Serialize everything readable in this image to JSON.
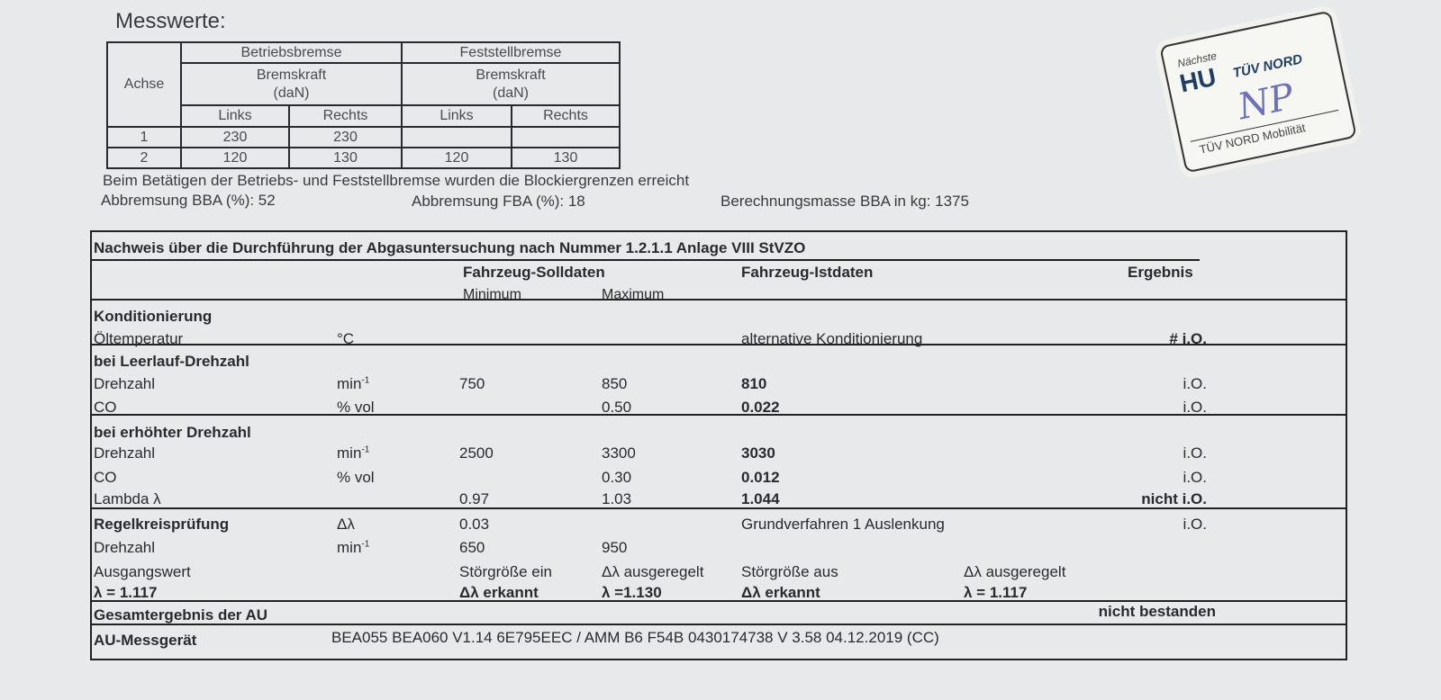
{
  "measurements": {
    "title": "Messwerte:",
    "headers": {
      "axle": "Achse",
      "service_brake": "Betriebsbremse",
      "parking_brake": "Feststellbremse",
      "brake_force": "Bremskraft",
      "unit": "(daN)",
      "left": "Links",
      "right": "Rechts"
    },
    "rows": [
      {
        "axle": "1",
        "bb_left": "230",
        "bb_right": "230",
        "fb_left": "",
        "fb_right": ""
      },
      {
        "axle": "2",
        "bb_left": "120",
        "bb_right": "130",
        "fb_left": "120",
        "fb_right": "130"
      }
    ],
    "note": "Beim Betätigen der Betriebs- und Feststellbremse wurden die Blockiergrenzen erreicht",
    "bba": "Abbremsung BBA (%): 52",
    "fba": "Abbremsung FBA (%): 18",
    "mass": "Berechnungsmasse BBA in kg: 1375"
  },
  "sticker": {
    "top": "Nächste",
    "hu": "HU",
    "brand": "TÜV NORD",
    "bottom": "TÜV NORD Mobilität",
    "initials": "NP"
  },
  "au": {
    "title": "Nachweis über die Durchführung der Abgasuntersuchung nach Nummer 1.2.1.1 Anlage VIII StVZO",
    "soll": "Fahrzeug-Solldaten",
    "ist": "Fahrzeug-Istdaten",
    "ergebnis": "Ergebnis",
    "minimum": "Minimum",
    "maximum": "Maximum",
    "konditionierung": "Konditionierung",
    "oel": {
      "label": "Öltemperatur",
      "unit": "°C",
      "ist": "alternative Konditionierung",
      "erg": "# i.O."
    },
    "leerlauf": "bei Leerlauf-Drehzahl",
    "ll_drehzahl": {
      "label": "Drehzahl",
      "unit": "min",
      "sup": "-1",
      "min": "750",
      "max": "850",
      "ist": "810",
      "erg": "i.O."
    },
    "ll_co": {
      "label": "CO",
      "unit": "% vol",
      "max": "0.50",
      "ist": "0.022",
      "erg": "i.O."
    },
    "erhoeht": "bei erhöhter Drehzahl",
    "eh_drehzahl": {
      "label": "Drehzahl",
      "unit": "min",
      "sup": "-1",
      "min": "2500",
      "max": "3300",
      "ist": "3030",
      "erg": "i.O."
    },
    "eh_co": {
      "label": "CO",
      "unit": "% vol",
      "max": "0.30",
      "ist": "0.012",
      "erg": "i.O."
    },
    "eh_lambda": {
      "label": "Lambda  λ",
      "min": "0.97",
      "max": "1.03",
      "ist": "1.044",
      "erg": "nicht i.O."
    },
    "regel": {
      "label": "Regelkreisprüfung",
      "unit": "Δλ",
      "min": "0.03",
      "ist": "Grundverfahren 1 Auslenkung",
      "erg": "i.O."
    },
    "rk_drehzahl": {
      "label": "Drehzahl",
      "unit": "min",
      "sup": "-1",
      "min": "650",
      "max": "950"
    },
    "ausgang": {
      "label": "Ausgangswert",
      "min": "Störgröße ein",
      "max": "Δλ  ausgeregelt",
      "ist": "Störgröße aus",
      "ext": "Δλ  ausgeregelt"
    },
    "ausgang2": {
      "label": "λ   = 1.117",
      "min": "Δλ erkannt",
      "max": "λ =1.130",
      "ist": "Δλ  erkannt",
      "ext": "λ   = 1.117"
    },
    "gesamt": {
      "label": "Gesamtergebnis der AU",
      "erg": "nicht bestanden"
    },
    "geraet": {
      "label": "AU-Messgerät",
      "value": "BEA055 BEA060 V1.14 6E795EEC / AMM B6 F54B  0430174738  V 3.58  04.12.2019 (CC)"
    }
  }
}
